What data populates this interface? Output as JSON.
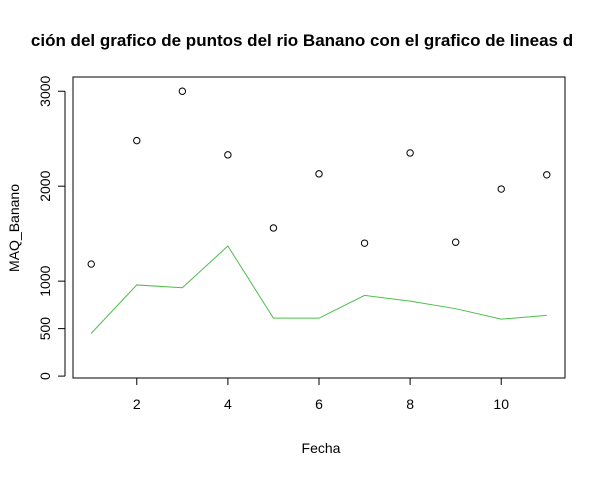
{
  "chart_data": {
    "type": "scatter",
    "title": "ción del grafico de puntos del rio Banano con el grafico de lineas d",
    "xlabel": "Fecha",
    "ylabel": "MAQ_Banano",
    "xlim": [
      0.6,
      11.4
    ],
    "ylim": [
      -20,
      3150
    ],
    "x_ticks": [
      2,
      4,
      6,
      8,
      10
    ],
    "y_ticks": [
      0,
      500,
      1000,
      2000,
      3000
    ],
    "grid": false,
    "series": [
      {
        "type": "scatter",
        "x": [
          1,
          2,
          3,
          4,
          5,
          6,
          7,
          8,
          9,
          10,
          11
        ],
        "y": [
          1180,
          2480,
          3000,
          2330,
          1560,
          2130,
          1400,
          2350,
          1410,
          1970,
          2120
        ],
        "color": "#000000"
      },
      {
        "type": "line",
        "x": [
          1,
          2,
          3,
          4,
          5,
          6,
          7,
          8,
          9,
          10,
          11
        ],
        "y": [
          450,
          960,
          930,
          1370,
          610,
          610,
          850,
          790,
          710,
          600,
          640
        ],
        "color": "#4dbd4d"
      }
    ]
  }
}
